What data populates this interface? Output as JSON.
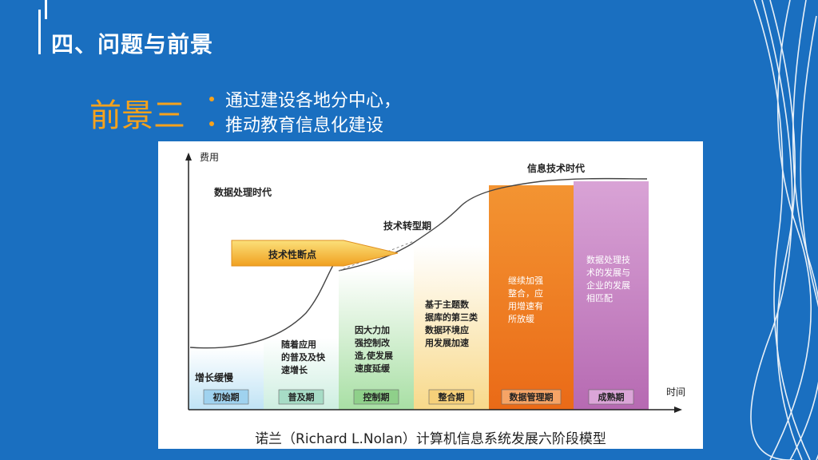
{
  "header": {
    "title": "四、问题与前景"
  },
  "prospect": {
    "label": "前景三",
    "bullets": [
      "通过建设各地分中心，",
      "推动教育信息化建设"
    ]
  },
  "diagram": {
    "y_axis": "费用",
    "x_axis": "时间",
    "era_data": "数据处理时代",
    "era_info": "信息技术时代",
    "transition": "技术转型期",
    "breakpoint": "技术性断点",
    "slow_growth": "增长缓慢",
    "caption": "诺兰（Richard L.Nolan）计算机信息系统发展六阶段模型",
    "stages": [
      {
        "name": "初始期",
        "text": "",
        "color": "#cfe9f6"
      },
      {
        "name": "普及期",
        "text": "随着应用\n的普及及快\n速增长",
        "color": "#dff2ea"
      },
      {
        "name": "控制期",
        "text": "因大力加\n强控制改\n造,使发展\n速度延缓",
        "color": "#c8ebc6"
      },
      {
        "name": "整合期",
        "text": "基于主题数\n据库的第三类\n数据环境应\n用发展加速",
        "color": "#fbe7b6"
      },
      {
        "name": "数据管理期",
        "text": "继续加强\n整合，应\n用增速有\n所放缓",
        "color": "#f07c2a"
      },
      {
        "name": "成熟期",
        "text": "数据处理技\n术的发展与\n企业的发展\n相匹配",
        "color": "#c883c4"
      }
    ]
  }
}
